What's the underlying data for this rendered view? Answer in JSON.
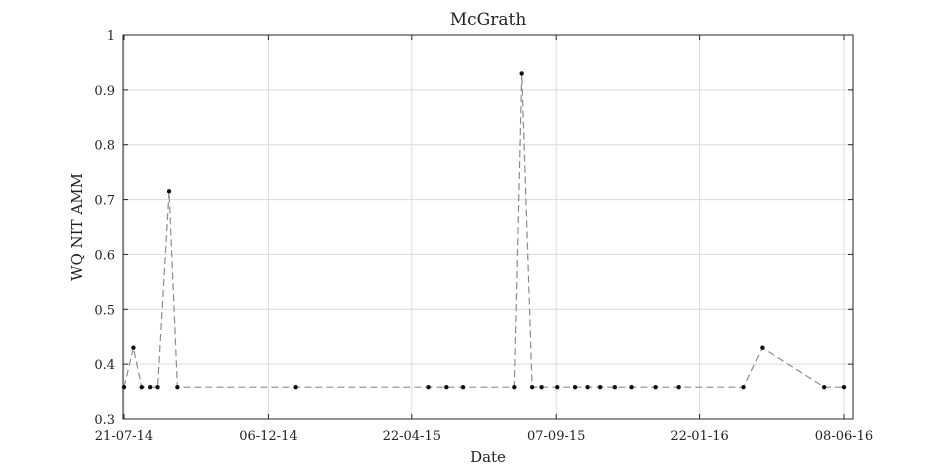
{
  "chart_data": {
    "type": "line",
    "title": "McGrath",
    "xlabel": "Date",
    "ylabel": "WQ NIT AMM",
    "grid": true,
    "legend": "none",
    "xlim": [
      "2014-07-21",
      "2016-06-08"
    ],
    "ylim": [
      0.3,
      1.0
    ],
    "x_ticks": [
      "21-07-14",
      "06-12-14",
      "22-04-15",
      "07-09-15",
      "22-01-16",
      "08-06-16"
    ],
    "y_ticks": [
      "0.3",
      "0.4",
      "0.5",
      "0.6",
      "0.7",
      "0.8",
      "0.9",
      "1"
    ],
    "series": [
      {
        "line_style": "dashed",
        "line_color": "#8c8c8c",
        "marker_color": "#111111",
        "points": [
          {
            "x": "2014-07-21",
            "y": 0.358
          },
          {
            "x": "2014-07-30",
            "y": 0.43
          },
          {
            "x": "2014-08-07",
            "y": 0.358
          },
          {
            "x": "2014-08-15",
            "y": 0.358
          },
          {
            "x": "2014-08-22",
            "y": 0.358
          },
          {
            "x": "2014-09-02",
            "y": 0.715
          },
          {
            "x": "2014-09-10",
            "y": 0.358
          },
          {
            "x": "2015-01-01",
            "y": 0.358
          },
          {
            "x": "2015-05-08",
            "y": 0.358
          },
          {
            "x": "2015-05-25",
            "y": 0.358
          },
          {
            "x": "2015-06-10",
            "y": 0.358
          },
          {
            "x": "2015-07-29",
            "y": 0.358
          },
          {
            "x": "2015-08-05",
            "y": 0.93
          },
          {
            "x": "2015-08-15",
            "y": 0.358
          },
          {
            "x": "2015-08-24",
            "y": 0.358
          },
          {
            "x": "2015-09-08",
            "y": 0.358
          },
          {
            "x": "2015-09-25",
            "y": 0.358
          },
          {
            "x": "2015-10-07",
            "y": 0.358
          },
          {
            "x": "2015-10-19",
            "y": 0.358
          },
          {
            "x": "2015-11-02",
            "y": 0.358
          },
          {
            "x": "2015-11-18",
            "y": 0.358
          },
          {
            "x": "2015-12-11",
            "y": 0.358
          },
          {
            "x": "2016-01-02",
            "y": 0.358
          },
          {
            "x": "2016-03-04",
            "y": 0.358
          },
          {
            "x": "2016-03-22",
            "y": 0.43
          },
          {
            "x": "2016-05-20",
            "y": 0.358
          },
          {
            "x": "2016-06-08",
            "y": 0.358
          }
        ]
      }
    ]
  }
}
